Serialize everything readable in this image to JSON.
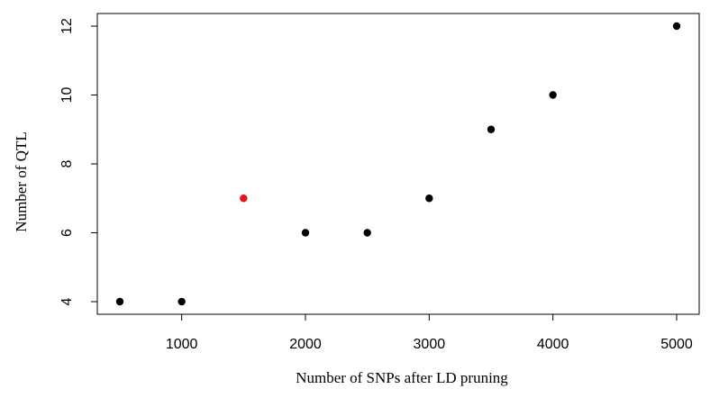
{
  "chart_data": {
    "type": "scatter",
    "xlabel": "Number of SNPs after LD pruning",
    "ylabel": "Number of QTL",
    "xlim": [
      500,
      5000
    ],
    "ylim": [
      4,
      12
    ],
    "xticks": [
      1000,
      2000,
      3000,
      4000,
      5000
    ],
    "yticks": [
      4,
      6,
      8,
      10,
      12
    ],
    "grid": false,
    "points": [
      {
        "x": 500,
        "y": 4,
        "color": "#000000"
      },
      {
        "x": 1000,
        "y": 4,
        "color": "#000000"
      },
      {
        "x": 1500,
        "y": 7,
        "color": "#e8141c"
      },
      {
        "x": 2000,
        "y": 6,
        "color": "#000000"
      },
      {
        "x": 2500,
        "y": 6,
        "color": "#000000"
      },
      {
        "x": 3000,
        "y": 7,
        "color": "#000000"
      },
      {
        "x": 3500,
        "y": 9,
        "color": "#000000"
      },
      {
        "x": 4000,
        "y": 10,
        "color": "#000000"
      },
      {
        "x": 5000,
        "y": 12,
        "color": "#000000"
      }
    ]
  }
}
